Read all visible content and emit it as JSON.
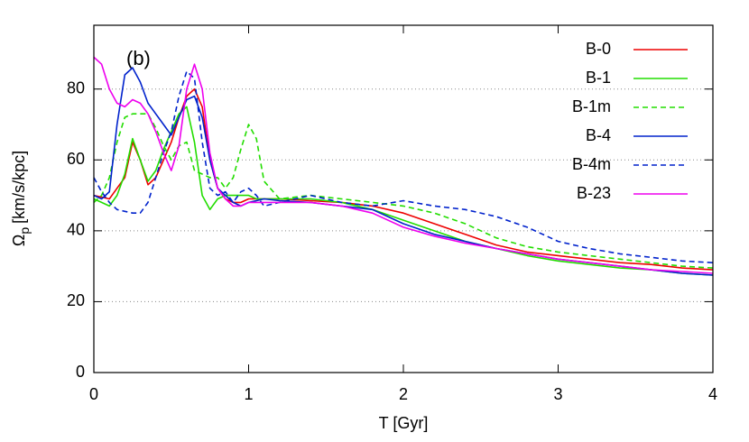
{
  "chart_data": {
    "type": "line",
    "annotation": "(b)",
    "xlabel": "T [Gyr]",
    "ylabel": {
      "symbol": "Ω",
      "subscript": "p",
      "unit": "[km/s/kpc]"
    },
    "xlim": [
      0,
      4
    ],
    "xticks": [
      0,
      1,
      2,
      3,
      4
    ],
    "ylim": [
      0,
      98
    ],
    "yticks": [
      0,
      20,
      40,
      60,
      80
    ],
    "grid": "y",
    "legend": "top-right",
    "x": [
      0,
      0.05,
      0.1,
      0.15,
      0.2,
      0.25,
      0.3,
      0.35,
      0.4,
      0.45,
      0.5,
      0.55,
      0.6,
      0.65,
      0.7,
      0.75,
      0.8,
      0.85,
      0.9,
      0.95,
      1.0,
      1.05,
      1.1,
      1.2,
      1.4,
      1.6,
      1.8,
      2.0,
      2.2,
      2.4,
      2.6,
      2.8,
      3.0,
      3.2,
      3.4,
      3.6,
      3.8,
      4.0
    ],
    "series": [
      {
        "name": "B-0",
        "color": "#ee0000",
        "style": "solid",
        "values": [
          50,
          49.5,
          49,
          52,
          55,
          65,
          60,
          53,
          55,
          60,
          65,
          72,
          78,
          80,
          75,
          60,
          52,
          49,
          48,
          48,
          49,
          49,
          49,
          49,
          48.5,
          48,
          47,
          45,
          42,
          39,
          36,
          34,
          33,
          32,
          31,
          30.5,
          29.5,
          29
        ]
      },
      {
        "name": "B-1",
        "color": "#22dd00",
        "style": "solid",
        "values": [
          49,
          48,
          47,
          50,
          56,
          66,
          60,
          54,
          57,
          63,
          68,
          73,
          75,
          65,
          50,
          46,
          49,
          50,
          50,
          50,
          50,
          49,
          49,
          49,
          49,
          48,
          46,
          43,
          40,
          37,
          35,
          33,
          31.5,
          30.5,
          29.5,
          29,
          28,
          27.5
        ]
      },
      {
        "name": "B-1m",
        "color": "#22dd00",
        "style": "dashed",
        "values": [
          48,
          50,
          55,
          65,
          72,
          73,
          73,
          73,
          69,
          64,
          60,
          64,
          65,
          57,
          56,
          55,
          55,
          52,
          55,
          63,
          70,
          66,
          54,
          49,
          50,
          49,
          48,
          47,
          45,
          42,
          38,
          35.5,
          34,
          33,
          32,
          31,
          30,
          29.5
        ]
      },
      {
        "name": "B-4",
        "color": "#0022cc",
        "style": "solid",
        "values": [
          50,
          49,
          51,
          70,
          84,
          86,
          82,
          76,
          73,
          70,
          67,
          72,
          77,
          78,
          72,
          60,
          52,
          50,
          48,
          47,
          48,
          48.5,
          49,
          48.5,
          48,
          47,
          46,
          42,
          39,
          37,
          35,
          33.5,
          32,
          31,
          30,
          29,
          28,
          27.5
        ]
      },
      {
        "name": "B-4m",
        "color": "#0022cc",
        "style": "dashed",
        "values": [
          55,
          51,
          48,
          46,
          45.5,
          45,
          45,
          48,
          55,
          62,
          68,
          78,
          85,
          83,
          65,
          52,
          50,
          51,
          48,
          51,
          52,
          50,
          47,
          48,
          50,
          48,
          47,
          48.5,
          47,
          46,
          44,
          41,
          37,
          35,
          33.5,
          32.5,
          31.5,
          31
        ]
      },
      {
        "name": "B-23",
        "color": "#ee00ee",
        "style": "solid",
        "values": [
          89,
          87,
          80,
          76,
          75,
          77,
          76,
          73,
          68,
          62,
          57,
          64,
          80,
          87,
          80,
          62,
          52,
          49,
          47,
          47,
          48,
          48,
          48,
          48,
          48,
          47,
          45,
          41,
          38.5,
          36.5,
          35,
          33.5,
          32,
          31,
          30,
          29,
          28.5,
          28
        ]
      }
    ]
  }
}
